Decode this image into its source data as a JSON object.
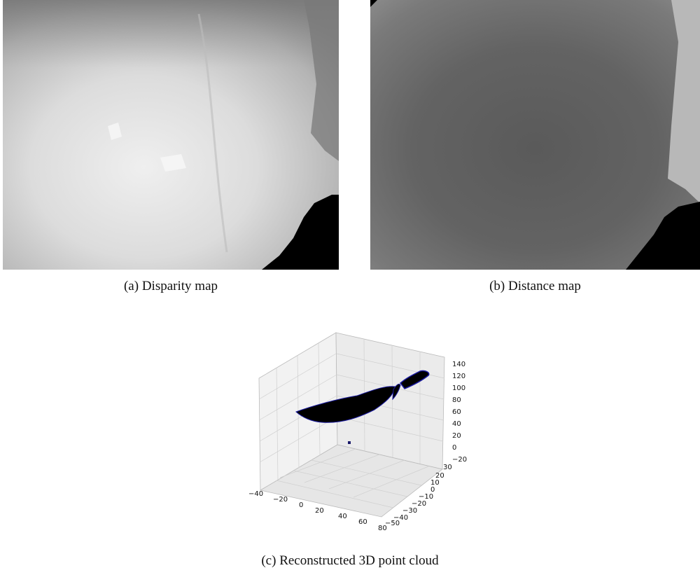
{
  "figure": {
    "captions": {
      "a": "(a) Disparity map",
      "b": "(b) Distance map",
      "c": "(c) Reconstructed 3D point cloud"
    },
    "plot3d": {
      "x_ticks": [
        "−40",
        "−20",
        "0",
        "20",
        "40",
        "60",
        "80"
      ],
      "y_ticks": [
        "30",
        "20",
        "10",
        "0",
        "−10",
        "−20",
        "−30",
        "−40",
        "−50"
      ],
      "z_ticks": [
        "140",
        "120",
        "100",
        "80",
        "60",
        "40",
        "20",
        "0",
        "−20"
      ]
    },
    "colors": {
      "point_cloud": "#000000",
      "point_edge": "#1a1aa0"
    }
  }
}
